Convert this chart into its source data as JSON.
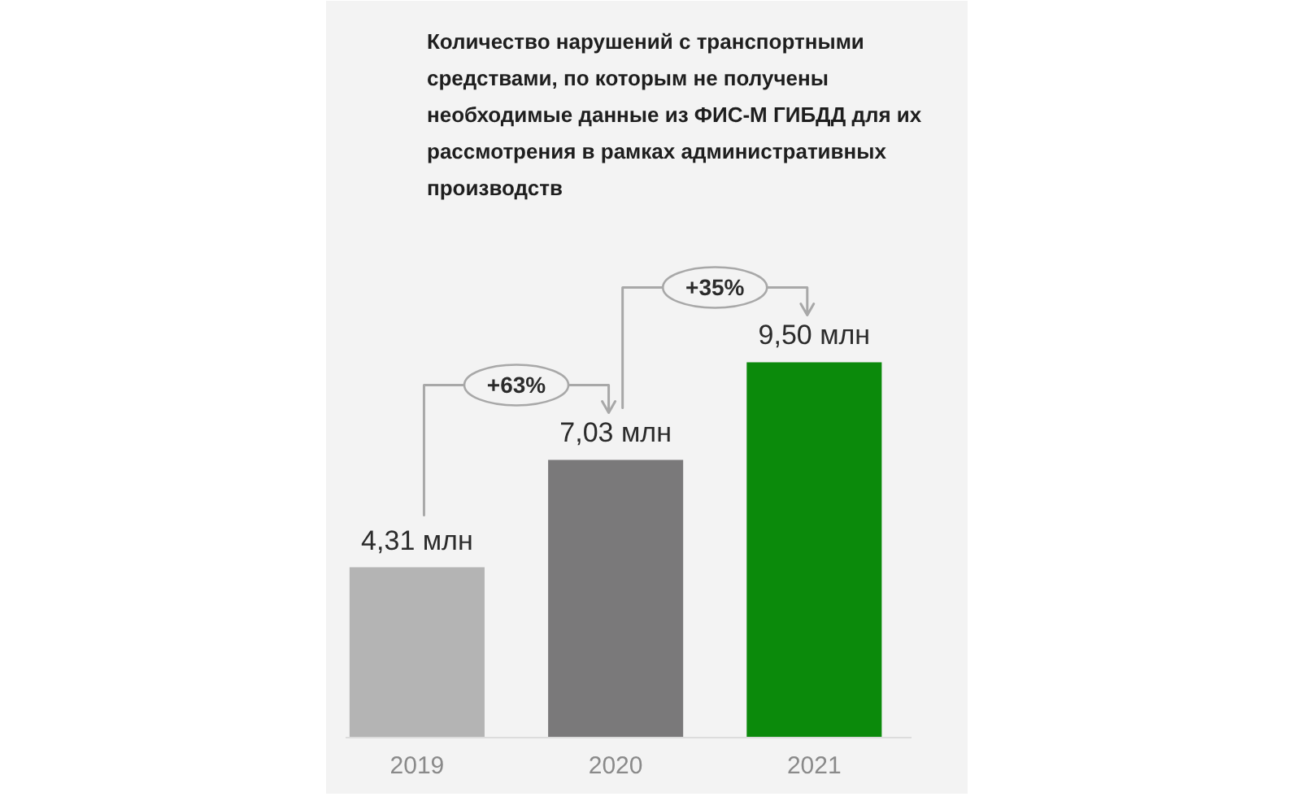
{
  "chart_data": {
    "type": "bar",
    "title": "Количество нарушений с транспортными средствами, по которым не получены необходимые данные из ФИС-М ГИБДД для их рассмотрения в рамках административных производств",
    "categories": [
      "2019",
      "2020",
      "2021"
    ],
    "values": [
      4.31,
      7.03,
      9.5
    ],
    "colors": [
      "#b4b4b4",
      "#7a797a",
      "#0b8a0b"
    ],
    "value_labels": [
      "4,31 млн",
      "7,03 млн",
      "9,50 млн"
    ],
    "annotations": [
      "+63%",
      "+35%"
    ]
  }
}
